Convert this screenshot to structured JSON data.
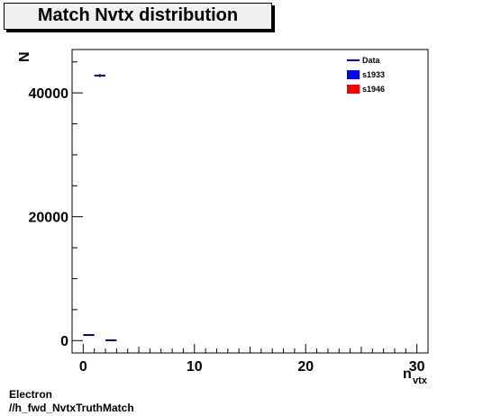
{
  "chart_data": {
    "type": "histogram",
    "title": "Match Nvtx distribution",
    "ylabel": "N",
    "xlabel": "n",
    "xlabel_subscript": "vtx",
    "xlim": [
      -1,
      31
    ],
    "ylim": [
      -2000,
      47000
    ],
    "x_ticks": [
      0,
      10,
      20,
      30
    ],
    "y_ticks": [
      0,
      20000,
      40000
    ],
    "grid": false,
    "legend_position": "top-right",
    "legend": [
      {
        "name": "Data",
        "style": "line",
        "color": "#00007f"
      },
      {
        "name": "s1933",
        "style": "box",
        "color": "#0000ff"
      },
      {
        "name": "s1946",
        "style": "box",
        "color": "#ff0000"
      }
    ],
    "series": [
      {
        "name": "Data",
        "color": "#00007f",
        "bin_width": 1,
        "x": [
          0.5,
          1.5,
          2.5
        ],
        "values": [
          900,
          42800,
          50
        ],
        "errors": [
          30,
          300,
          10
        ]
      }
    ]
  },
  "footer": {
    "line1": "Electron",
    "line2": "//h_fwd_NvtxTruthMatch"
  }
}
